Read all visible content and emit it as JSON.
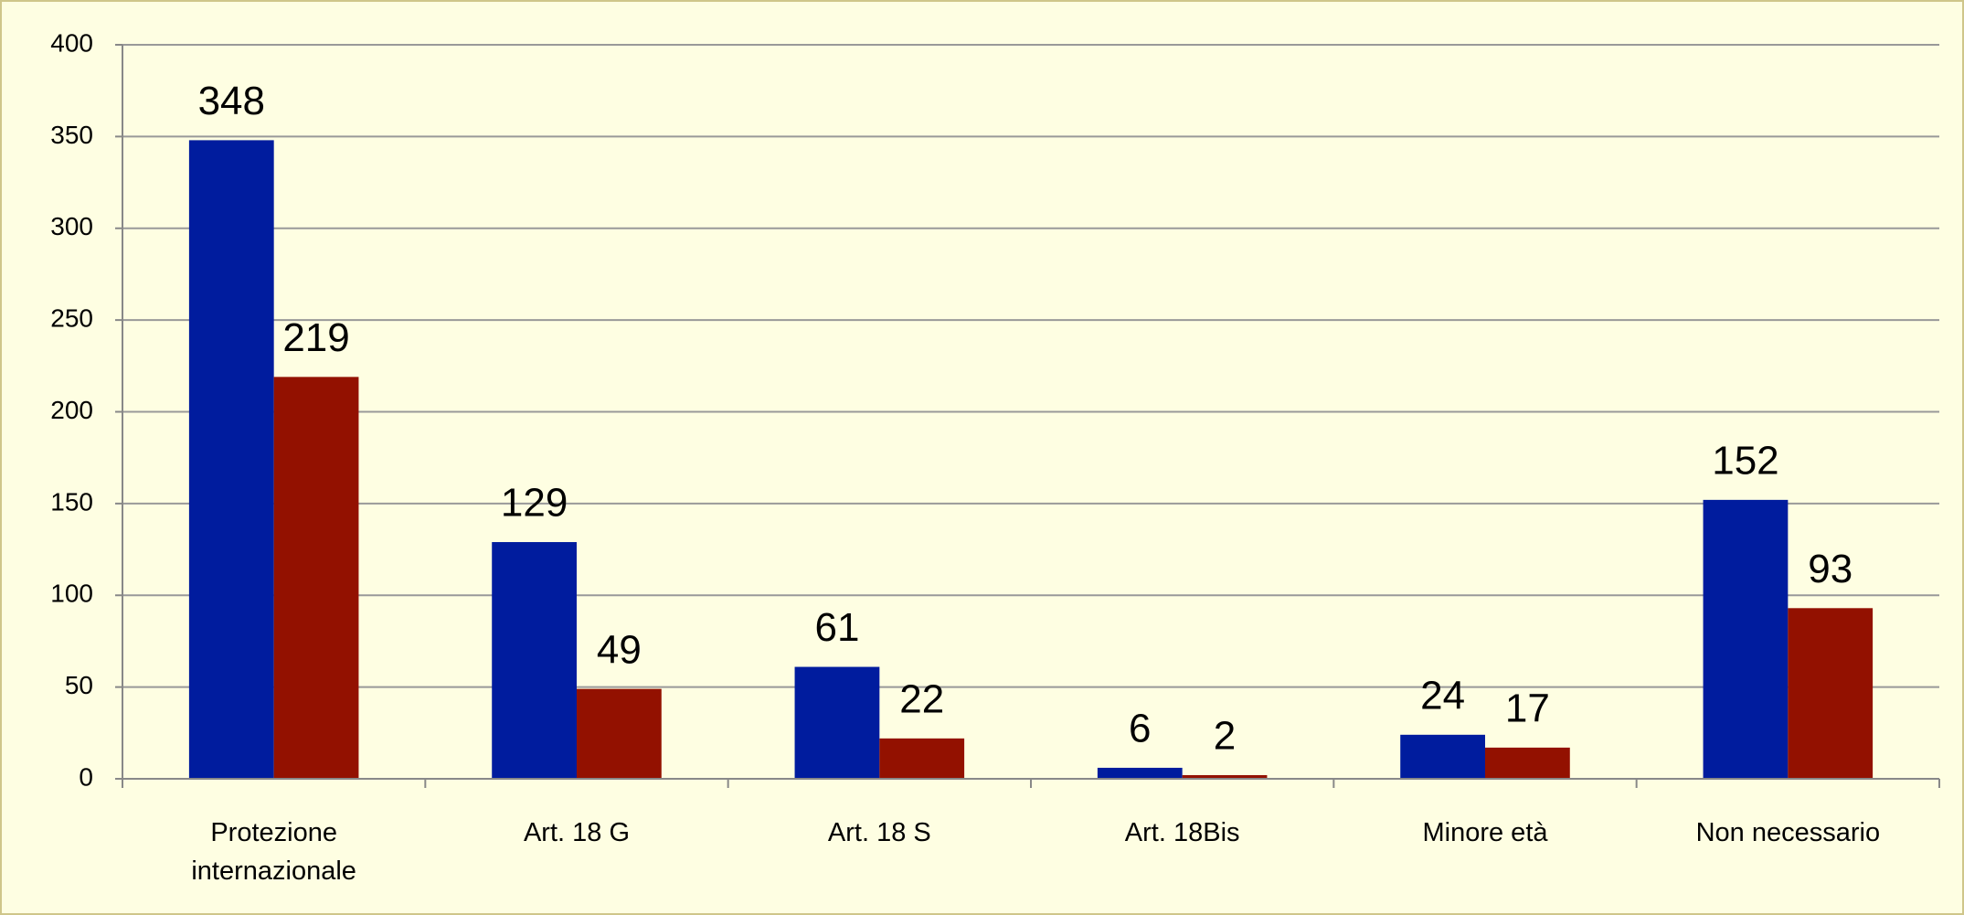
{
  "chart_data": {
    "type": "bar",
    "categories": [
      "Protezione internazionale",
      "Art. 18 G",
      "Art. 18 S",
      "Art. 18Bis",
      "Minore età",
      "Non necessario"
    ],
    "series": [
      {
        "color": "#001c9e",
        "values": [
          348,
          129,
          61,
          6,
          24,
          152
        ]
      },
      {
        "color": "#931100",
        "values": [
          219,
          49,
          22,
          2,
          17,
          93
        ]
      }
    ],
    "ylim": [
      0,
      400
    ],
    "yticks": [
      0,
      50,
      100,
      150,
      200,
      250,
      300,
      350,
      400
    ],
    "grid": true
  }
}
